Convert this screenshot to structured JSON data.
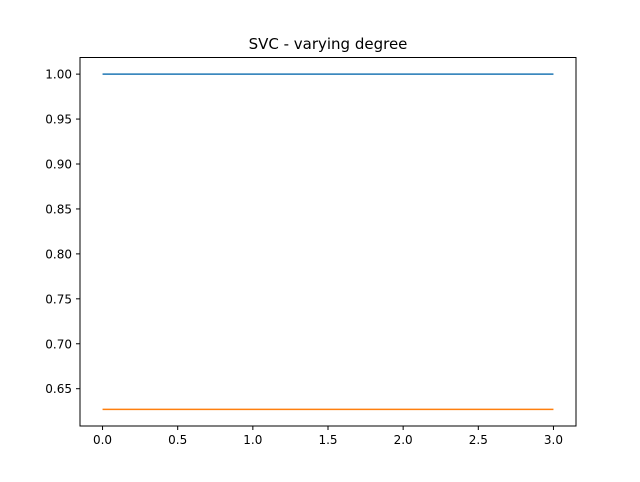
{
  "chart_data": {
    "type": "line",
    "title": "SVC - varying degree",
    "xlabel": "",
    "ylabel": "",
    "xlim": [
      -0.15,
      3.15
    ],
    "ylim": [
      0.6085,
      1.0185
    ],
    "xticks": [
      0.0,
      0.5,
      1.0,
      1.5,
      2.0,
      2.5,
      3.0
    ],
    "xtick_labels": [
      "0.0",
      "0.5",
      "1.0",
      "1.5",
      "2.0",
      "2.5",
      "3.0"
    ],
    "yticks": [
      0.65,
      0.7,
      0.75,
      0.8,
      0.85,
      0.9,
      0.95,
      1.0
    ],
    "ytick_labels": [
      "0.65",
      "0.70",
      "0.75",
      "0.80",
      "0.85",
      "0.90",
      "0.95",
      "1.00"
    ],
    "grid": false,
    "x": [
      0,
      1,
      2,
      3
    ],
    "series": [
      {
        "values": [
          1.0,
          1.0,
          1.0,
          1.0
        ],
        "color": "#1f77b4"
      },
      {
        "values": [
          0.627,
          0.627,
          0.627,
          0.627
        ],
        "color": "#ff7f0e"
      }
    ]
  }
}
